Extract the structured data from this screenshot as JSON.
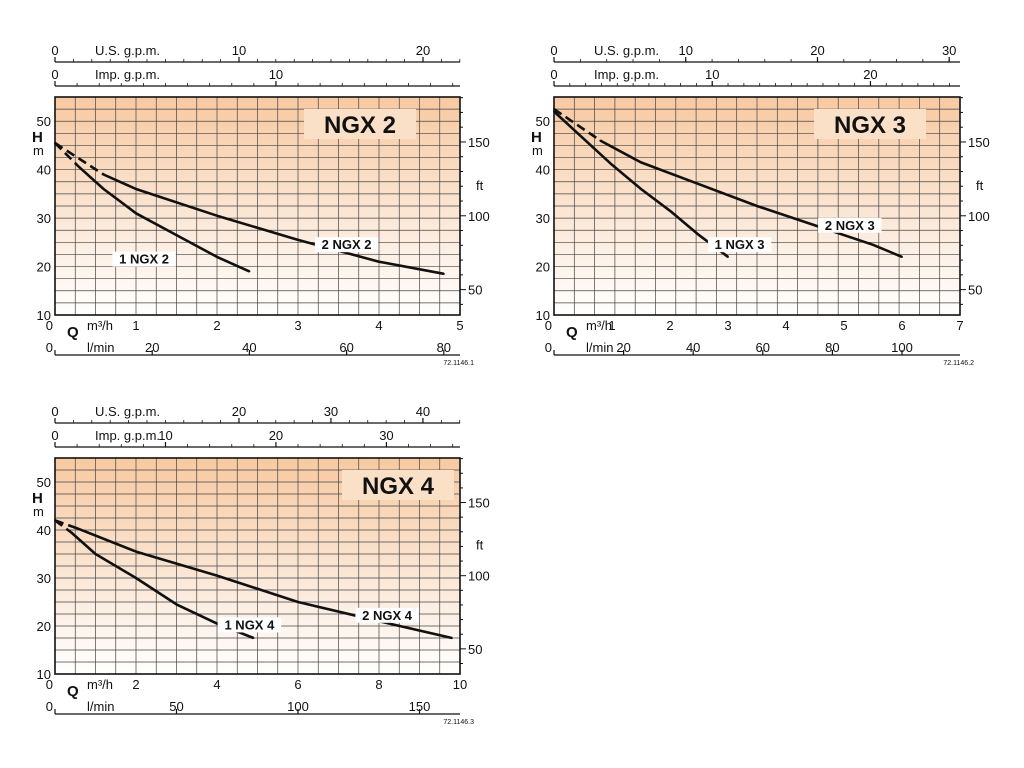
{
  "chart_data": [
    {
      "type": "line",
      "title": "NGX 2",
      "figure_code": "72.1146.1",
      "top_axis_1": {
        "label": "U.S. g.p.m.",
        "ticks": [
          {
            "v": 0,
            "t": "0"
          },
          {
            "v": 10,
            "t": "10"
          },
          {
            "v": 20,
            "t": "20"
          }
        ],
        "max": 22.01
      },
      "top_axis_2": {
        "label": "Imp. g.p.m.",
        "ticks": [
          {
            "v": 0,
            "t": "0"
          },
          {
            "v": 10,
            "t": "10"
          }
        ],
        "max": 18.33
      },
      "x_primary": {
        "label": "m³/h",
        "letter": "Q",
        "range": [
          0,
          5
        ],
        "ticks": [
          {
            "v": 0,
            "t": "0"
          },
          {
            "v": 1,
            "t": "1"
          },
          {
            "v": 2,
            "t": "2"
          },
          {
            "v": 3,
            "t": "3"
          },
          {
            "v": 4,
            "t": "4"
          },
          {
            "v": 5,
            "t": "5"
          }
        ]
      },
      "x_secondary": {
        "label": "l/min",
        "ticks": [
          {
            "v": 0,
            "t": "0"
          },
          {
            "v": 20,
            "t": "20"
          },
          {
            "v": 40,
            "t": "40"
          },
          {
            "v": 60,
            "t": "60"
          },
          {
            "v": 80,
            "t": "80"
          }
        ],
        "max": 83.33
      },
      "y_left": {
        "label_h": "H",
        "label_m": "m",
        "range": [
          10,
          55
        ],
        "ticks": [
          {
            "v": 10,
            "t": "10"
          },
          {
            "v": 20,
            "t": "20"
          },
          {
            "v": 30,
            "t": "30"
          },
          {
            "v": 40,
            "t": "40"
          },
          {
            "v": 50,
            "t": "50"
          }
        ]
      },
      "y_right": {
        "label": "ft",
        "ticks": [
          {
            "v": 50,
            "t": "50"
          },
          {
            "v": 100,
            "t": "100"
          },
          {
            "v": 150,
            "t": "150"
          }
        ]
      },
      "series": [
        {
          "name": "1 NGX 2",
          "dashed_until": 0.3,
          "x": [
            0,
            0.3,
            0.6,
            1.0,
            1.5,
            2.0,
            2.4
          ],
          "y": [
            45.5,
            40.5,
            36,
            31,
            26.5,
            22,
            19
          ]
        },
        {
          "name": "2 NGX 2",
          "dashed_until": 0.6,
          "x": [
            0,
            0.6,
            1.0,
            2.0,
            3.0,
            4.0,
            4.8
          ],
          "y": [
            45.5,
            39,
            36,
            30.5,
            25.5,
            21,
            18.5
          ]
        }
      ],
      "curve_labels": [
        {
          "series": "1 NGX 2",
          "x": 1.1,
          "y": 20.8
        },
        {
          "series": "2 NGX 2",
          "x": 3.6,
          "y": 23.8
        }
      ]
    },
    {
      "type": "line",
      "title": "NGX 3",
      "figure_code": "72.1146.2",
      "top_axis_1": {
        "label": "U.S. g.p.m.",
        "ticks": [
          {
            "v": 0,
            "t": "0"
          },
          {
            "v": 10,
            "t": "10"
          },
          {
            "v": 20,
            "t": "20"
          },
          {
            "v": 30,
            "t": "30"
          }
        ],
        "max": 30.82
      },
      "top_axis_2": {
        "label": "Imp. g.p.m.",
        "ticks": [
          {
            "v": 0,
            "t": "0"
          },
          {
            "v": 10,
            "t": "10"
          },
          {
            "v": 20,
            "t": "20"
          }
        ],
        "max": 25.66
      },
      "x_primary": {
        "label": "m³/h",
        "letter": "Q",
        "range": [
          0,
          7
        ],
        "ticks": [
          {
            "v": 0,
            "t": "0"
          },
          {
            "v": 1,
            "t": "1"
          },
          {
            "v": 2,
            "t": "2"
          },
          {
            "v": 3,
            "t": "3"
          },
          {
            "v": 4,
            "t": "4"
          },
          {
            "v": 5,
            "t": "5"
          },
          {
            "v": 6,
            "t": "6"
          },
          {
            "v": 7,
            "t": "7"
          }
        ]
      },
      "x_secondary": {
        "label": "l/min",
        "ticks": [
          {
            "v": 0,
            "t": "0"
          },
          {
            "v": 20,
            "t": "20"
          },
          {
            "v": 40,
            "t": "40"
          },
          {
            "v": 60,
            "t": "60"
          },
          {
            "v": 80,
            "t": "80"
          },
          {
            "v": 100,
            "t": "100"
          }
        ],
        "max": 116.67
      },
      "y_left": {
        "label_h": "H",
        "label_m": "m",
        "range": [
          10,
          55
        ],
        "ticks": [
          {
            "v": 10,
            "t": "10"
          },
          {
            "v": 20,
            "t": "20"
          },
          {
            "v": 30,
            "t": "30"
          },
          {
            "v": 40,
            "t": "40"
          },
          {
            "v": 50,
            "t": "50"
          }
        ]
      },
      "y_right": {
        "label": "ft",
        "ticks": [
          {
            "v": 50,
            "t": "50"
          },
          {
            "v": 100,
            "t": "100"
          },
          {
            "v": 150,
            "t": "150"
          }
        ]
      },
      "series": [
        {
          "name": "1 NGX 3",
          "dashed_until": 0.0,
          "x": [
            0,
            0.5,
            1.0,
            1.5,
            2.0,
            2.5,
            3.0
          ],
          "y": [
            52,
            46.5,
            41,
            36,
            31.5,
            26.5,
            22
          ]
        },
        {
          "name": "2 NGX 3",
          "dashed_until": 0.8,
          "x": [
            0,
            0.8,
            1.5,
            2.5,
            3.5,
            4.5,
            5.5,
            6.0
          ],
          "y": [
            52.5,
            46,
            41.5,
            37,
            32.5,
            28.5,
            24.5,
            22
          ]
        }
      ],
      "curve_labels": [
        {
          "series": "1 NGX 3",
          "x": 3.2,
          "y": 23.8
        },
        {
          "series": "2 NGX 3",
          "x": 5.1,
          "y": 27.8
        }
      ]
    },
    {
      "type": "line",
      "title": "NGX 4",
      "figure_code": "72.1146.3",
      "top_axis_1": {
        "label": "U.S. g.p.m.",
        "ticks": [
          {
            "v": 0,
            "t": "0"
          },
          {
            "v": 20,
            "t": "20"
          },
          {
            "v": 30,
            "t": "30"
          },
          {
            "v": 40,
            "t": "40"
          }
        ],
        "max": 44.03
      },
      "top_axis_2": {
        "label": "Imp. g.p.m.",
        "ticks": [
          {
            "v": 0,
            "t": "0"
          },
          {
            "v": 10,
            "t": "10"
          },
          {
            "v": 20,
            "t": "20"
          },
          {
            "v": 30,
            "t": "30"
          }
        ],
        "max": 36.66
      },
      "x_primary": {
        "label": "m³/h",
        "letter": "Q",
        "range": [
          0,
          10
        ],
        "ticks": [
          {
            "v": 0,
            "t": "0"
          },
          {
            "v": 2,
            "t": "2"
          },
          {
            "v": 4,
            "t": "4"
          },
          {
            "v": 6,
            "t": "6"
          },
          {
            "v": 8,
            "t": "8"
          },
          {
            "v": 10,
            "t": "10"
          }
        ]
      },
      "x_secondary": {
        "label": "l/min",
        "ticks": [
          {
            "v": 0,
            "t": "0"
          },
          {
            "v": 50,
            "t": "50"
          },
          {
            "v": 100,
            "t": "100"
          },
          {
            "v": 150,
            "t": "150"
          }
        ],
        "max": 166.67
      },
      "y_left": {
        "label_h": "H",
        "label_m": "m",
        "range": [
          10,
          55
        ],
        "ticks": [
          {
            "v": 10,
            "t": "10"
          },
          {
            "v": 20,
            "t": "20"
          },
          {
            "v": 30,
            "t": "30"
          },
          {
            "v": 40,
            "t": "40"
          },
          {
            "v": 50,
            "t": "50"
          }
        ]
      },
      "y_right": {
        "label": "ft",
        "ticks": [
          {
            "v": 50,
            "t": "50"
          },
          {
            "v": 100,
            "t": "100"
          },
          {
            "v": 150,
            "t": "150"
          }
        ]
      },
      "series": [
        {
          "name": "1 NGX 4",
          "dashed_until": 0.4,
          "x": [
            0,
            0.4,
            1.0,
            2.0,
            3.0,
            4.0,
            4.9
          ],
          "y": [
            42,
            39.5,
            35,
            30,
            24.5,
            20.5,
            17.5
          ]
        },
        {
          "name": "2 NGX 4",
          "dashed_until": 0.5,
          "x": [
            0,
            0.5,
            2.0,
            4.0,
            6.0,
            8.0,
            9.8
          ],
          "y": [
            42,
            40.5,
            35.5,
            30.5,
            25,
            21,
            17.5
          ]
        }
      ],
      "curve_labels": [
        {
          "series": "1 NGX 4",
          "x": 4.8,
          "y": 19.5
        },
        {
          "series": "2 NGX 4",
          "x": 8.2,
          "y": 21.5
        }
      ]
    }
  ]
}
